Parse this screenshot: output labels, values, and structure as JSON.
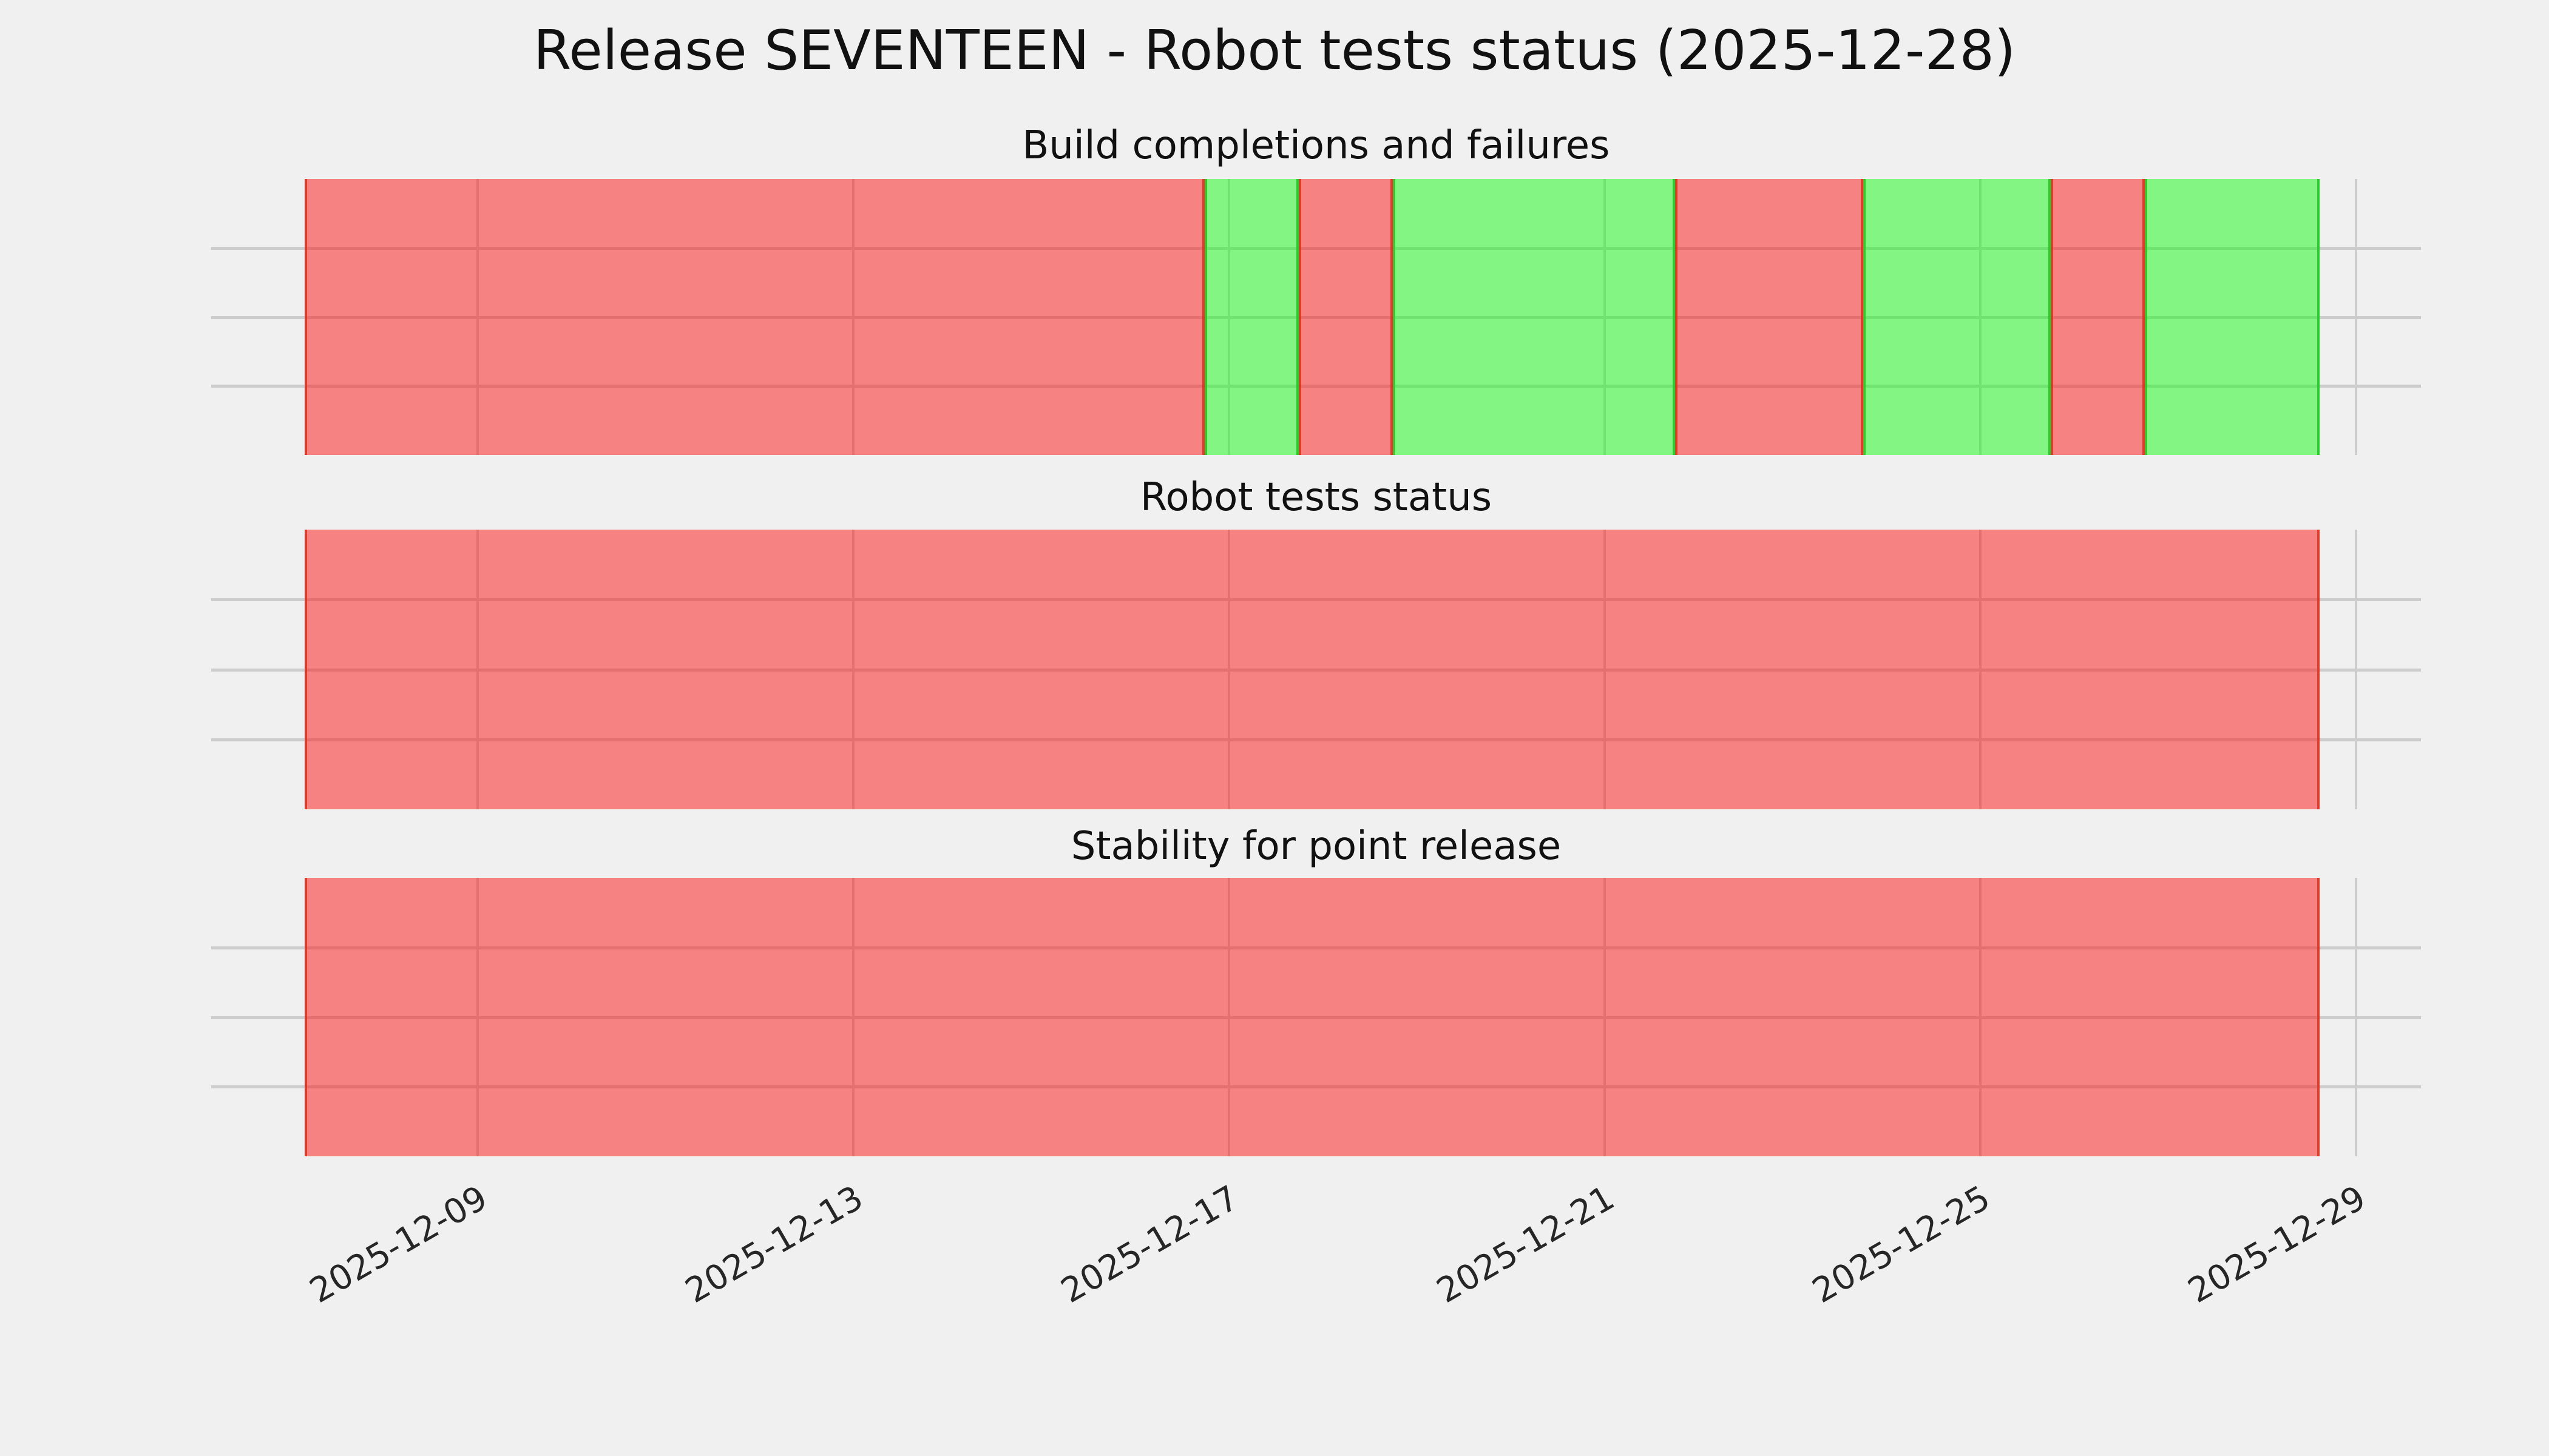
{
  "figure": {
    "title": "Release SEVENTEEN - Robot tests status (2025-12-28)",
    "background_color": "#f0f0f0",
    "grid_color": "#cdcdcd",
    "status_colors": {
      "fail_fill": "#f77474",
      "fail_edge": "#dc2d19",
      "ok_fill": "#74f377",
      "ok_edge": "#23c823"
    }
  },
  "x_axis": {
    "tick_labels": [
      "2025-12-09",
      "2025-12-13",
      "2025-12-17",
      "2025-12-21",
      "2025-12-25",
      "2025-12-29"
    ],
    "tick_positions_pct": [
      12.057,
      29.058,
      46.059,
      63.059,
      80.06,
      97.061
    ],
    "rotation_deg": 30
  },
  "chart_data": [
    {
      "type": "timeline",
      "title": "Build completions and failures",
      "span_start": "2025-12-07 ~04:00",
      "span_end": "2025-12-28 ~14:30",
      "segments": [
        {
          "status": "fail",
          "start": "2025-12-07 ~04:00",
          "end": "2025-12-16 ~18:00",
          "width_pct": 44.67
        },
        {
          "status": "ok",
          "start": "2025-12-16 ~18:00",
          "end": "2025-12-17 ~18:00",
          "width_pct": 4.67
        },
        {
          "status": "fail",
          "start": "2025-12-17 ~18:00",
          "end": "2025-12-18 ~18:00",
          "width_pct": 4.67
        },
        {
          "status": "ok",
          "start": "2025-12-18 ~18:00",
          "end": "2025-12-21 ~18:00",
          "width_pct": 14.01
        },
        {
          "status": "fail",
          "start": "2025-12-21 ~18:00",
          "end": "2025-12-23 ~18:00",
          "width_pct": 9.34
        },
        {
          "status": "ok",
          "start": "2025-12-23 ~18:00",
          "end": "2025-12-25 ~18:00",
          "width_pct": 9.31
        },
        {
          "status": "fail",
          "start": "2025-12-25 ~18:00",
          "end": "2025-12-26 ~18:00",
          "width_pct": 4.67
        },
        {
          "status": "ok",
          "start": "2025-12-26 ~18:00",
          "end": "2025-12-28 ~14:30",
          "width_pct": 8.66
        }
      ]
    },
    {
      "type": "timeline",
      "title": "Robot tests status",
      "span_start": "2025-12-07 ~04:00",
      "span_end": "2025-12-28 ~14:30",
      "segments": [
        {
          "status": "fail",
          "start": "2025-12-07 ~04:00",
          "end": "2025-12-28 ~14:30",
          "width_pct": 100
        }
      ]
    },
    {
      "type": "timeline",
      "title": "Stability for point release",
      "span_start": "2025-12-07 ~04:00",
      "span_end": "2025-12-28 ~14:30",
      "segments": [
        {
          "status": "fail",
          "start": "2025-12-07 ~04:00",
          "end": "2025-12-28 ~14:30",
          "width_pct": 100
        }
      ]
    }
  ]
}
